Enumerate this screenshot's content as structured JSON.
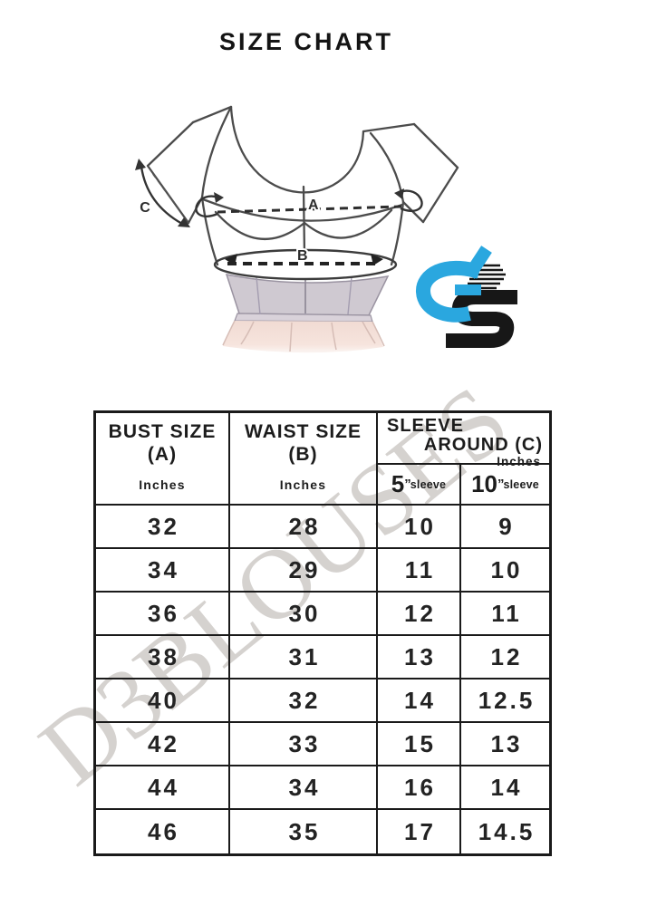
{
  "title": "SIZE CHART",
  "watermark": "D3BLOUSES",
  "colors": {
    "brand_blue": "#2aa7df",
    "brand_black": "#171717",
    "line": "#4c4c4c",
    "border": "#1a1a1a"
  },
  "diagram": {
    "labels": {
      "bust": "A",
      "waist": "B",
      "sleeve": "C"
    }
  },
  "table": {
    "header": {
      "bust": {
        "line1": "BUST SIZE",
        "line2": "(A)",
        "unit": "Inches"
      },
      "waist": {
        "line1": "WAIST SIZE",
        "line2": "(B)",
        "unit": "Inches"
      },
      "sleeve": {
        "line1": "SLEEVE",
        "line2": "AROUND (C)",
        "unit": "Inches",
        "sub": [
          {
            "num": "5",
            "mark": "”",
            "label": "sleeve"
          },
          {
            "num": "10",
            "mark": "”",
            "label": "sleeve"
          }
        ]
      }
    },
    "rows": [
      [
        "32",
        "28",
        "10",
        "9"
      ],
      [
        "34",
        "29",
        "11",
        "10"
      ],
      [
        "36",
        "30",
        "12",
        "11"
      ],
      [
        "38",
        "31",
        "13",
        "12"
      ],
      [
        "40",
        "32",
        "14",
        "12.5"
      ],
      [
        "42",
        "33",
        "15",
        "13"
      ],
      [
        "44",
        "34",
        "16",
        "14"
      ],
      [
        "46",
        "35",
        "17",
        "14.5"
      ]
    ]
  }
}
